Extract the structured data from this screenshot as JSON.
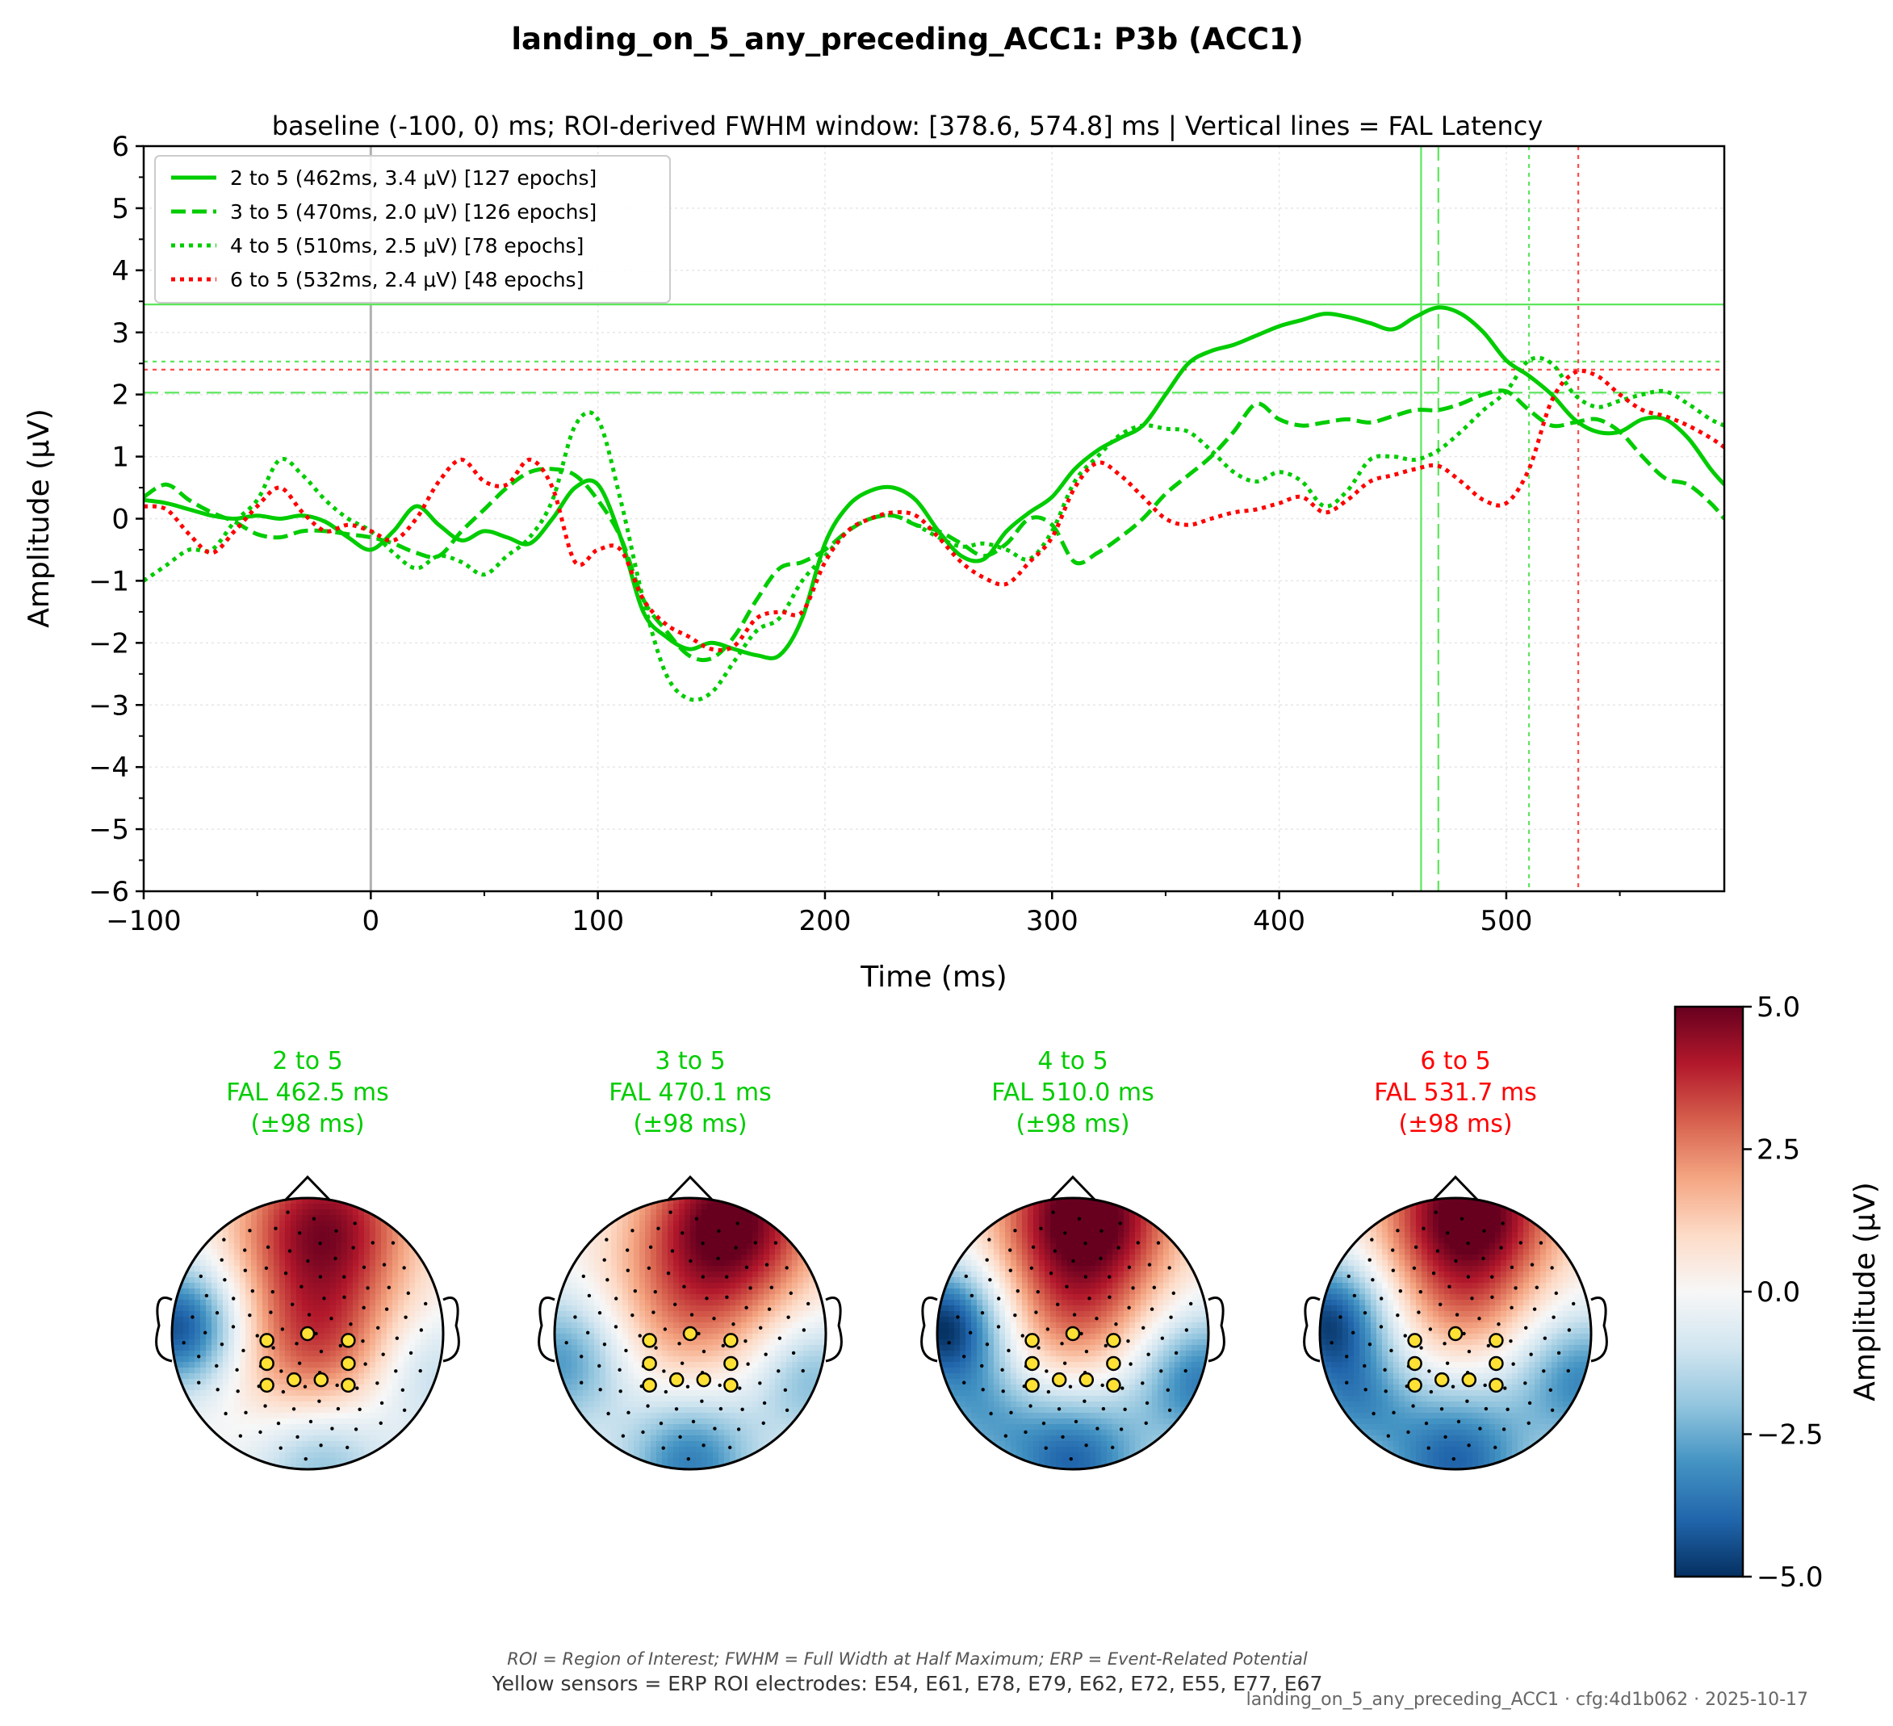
{
  "suptitle": "landing_on_5_any_preceding_ACC1: P3b (ACC1)",
  "colors": {
    "green": "#00cc00",
    "red": "#ff0000",
    "light_green": "#5ce65c"
  },
  "chart_data": [
    {
      "type": "line",
      "title": "baseline (-100, 0) ms; ROI-derived FWHM window: [378.6, 574.8] ms | Vertical lines = FAL Latency",
      "xlabel": "Time (ms)",
      "ylabel": "Amplitude (μV)",
      "xlim": [
        -100,
        596
      ],
      "ylim": [
        -6,
        6
      ],
      "xticks": [
        -100,
        0,
        100,
        200,
        300,
        400,
        500
      ],
      "xtick_labels": [
        "−100",
        "0",
        "100",
        "200",
        "300",
        "400",
        "500"
      ],
      "yticks": [
        6,
        5,
        4,
        3,
        2,
        1,
        0,
        -1,
        -2,
        -3,
        -4,
        -5,
        -6
      ],
      "ytick_labels": [
        "6",
        "5",
        "4",
        "3",
        "2",
        "1",
        "0",
        "−1",
        "−2",
        "−3",
        "−4",
        "−5",
        "−6"
      ],
      "grid": true,
      "legend_position": "upper-left",
      "series": [
        {
          "name": "2 to 5 (462ms, 3.4 μV) [127 epochs]",
          "color": "#00cc00",
          "dash": "solid",
          "fal_latency": 462.5,
          "fal_amplitude": 3.45,
          "x": [
            -100,
            -90,
            -80,
            -70,
            -60,
            -50,
            -40,
            -30,
            -20,
            -10,
            0,
            10,
            20,
            30,
            40,
            50,
            60,
            70,
            80,
            90,
            100,
            110,
            120,
            130,
            140,
            150,
            160,
            170,
            180,
            190,
            200,
            210,
            220,
            230,
            240,
            250,
            260,
            270,
            280,
            290,
            300,
            310,
            320,
            330,
            340,
            350,
            360,
            370,
            380,
            390,
            400,
            410,
            420,
            430,
            440,
            450,
            460,
            470,
            480,
            490,
            500,
            510,
            520,
            530,
            540,
            550,
            560,
            570,
            580,
            590,
            596
          ],
          "y": [
            0.3,
            0.25,
            0.15,
            0.05,
            0.0,
            0.05,
            0.0,
            0.05,
            -0.05,
            -0.3,
            -0.5,
            -0.2,
            0.2,
            -0.1,
            -0.35,
            -0.2,
            -0.3,
            -0.4,
            0.0,
            0.5,
            0.55,
            -0.3,
            -1.5,
            -1.9,
            -2.1,
            -2.0,
            -2.1,
            -2.2,
            -2.2,
            -1.6,
            -0.4,
            0.2,
            0.45,
            0.5,
            0.3,
            -0.2,
            -0.6,
            -0.65,
            -0.2,
            0.1,
            0.35,
            0.8,
            1.1,
            1.3,
            1.5,
            2.0,
            2.5,
            2.7,
            2.8,
            2.95,
            3.1,
            3.2,
            3.3,
            3.25,
            3.15,
            3.05,
            3.25,
            3.4,
            3.3,
            3.0,
            2.55,
            2.3,
            2.0,
            1.6,
            1.4,
            1.4,
            1.6,
            1.6,
            1.3,
            0.8,
            0.55
          ]
        },
        {
          "name": "3 to 5 (470ms, 2.0 μV) [126 epochs]",
          "color": "#00cc00",
          "dash": "dashed",
          "fal_latency": 470.1,
          "fal_amplitude": 2.03,
          "x": [
            -100,
            -90,
            -80,
            -70,
            -60,
            -50,
            -40,
            -30,
            -20,
            -10,
            0,
            10,
            20,
            30,
            40,
            50,
            60,
            70,
            80,
            90,
            100,
            110,
            120,
            130,
            140,
            150,
            160,
            170,
            180,
            190,
            200,
            210,
            220,
            230,
            240,
            250,
            260,
            270,
            280,
            290,
            300,
            310,
            320,
            330,
            340,
            350,
            360,
            370,
            380,
            390,
            400,
            410,
            420,
            430,
            440,
            450,
            460,
            470,
            480,
            490,
            500,
            510,
            520,
            530,
            540,
            550,
            560,
            570,
            580,
            590,
            596
          ],
          "y": [
            0.35,
            0.55,
            0.3,
            0.1,
            -0.05,
            -0.25,
            -0.3,
            -0.2,
            -0.2,
            -0.25,
            -0.3,
            -0.4,
            -0.55,
            -0.6,
            -0.2,
            0.15,
            0.5,
            0.75,
            0.8,
            0.7,
            0.3,
            -0.3,
            -1.3,
            -1.8,
            -2.2,
            -2.25,
            -1.9,
            -1.3,
            -0.8,
            -0.7,
            -0.5,
            -0.2,
            0.0,
            0.05,
            -0.1,
            -0.2,
            -0.4,
            -0.6,
            -0.4,
            0.0,
            -0.1,
            -0.7,
            -0.55,
            -0.3,
            0.0,
            0.4,
            0.7,
            1.0,
            1.4,
            1.85,
            1.6,
            1.5,
            1.55,
            1.6,
            1.55,
            1.65,
            1.75,
            1.75,
            1.85,
            2.0,
            2.05,
            1.75,
            1.5,
            1.55,
            1.6,
            1.4,
            1.0,
            0.65,
            0.55,
            0.25,
            0.0
          ]
        },
        {
          "name": "4 to 5 (510ms, 2.5 μV) [78 epochs]",
          "color": "#00cc00",
          "dash": "dotted",
          "fal_latency": 510.0,
          "fal_amplitude": 2.53,
          "x": [
            -100,
            -90,
            -80,
            -70,
            -60,
            -50,
            -40,
            -30,
            -20,
            -10,
            0,
            10,
            20,
            30,
            40,
            50,
            60,
            70,
            80,
            90,
            100,
            110,
            120,
            130,
            140,
            150,
            160,
            170,
            180,
            190,
            200,
            210,
            220,
            230,
            240,
            250,
            260,
            270,
            280,
            290,
            300,
            310,
            320,
            330,
            340,
            350,
            360,
            370,
            380,
            390,
            400,
            410,
            420,
            430,
            440,
            450,
            460,
            470,
            480,
            490,
            500,
            510,
            520,
            530,
            540,
            550,
            560,
            570,
            580,
            590,
            596
          ],
          "y": [
            -1.0,
            -0.75,
            -0.5,
            -0.5,
            -0.05,
            0.3,
            0.95,
            0.7,
            0.3,
            0.0,
            -0.2,
            -0.55,
            -0.8,
            -0.6,
            -0.7,
            -0.9,
            -0.6,
            -0.3,
            0.3,
            1.5,
            1.6,
            0.3,
            -1.3,
            -2.5,
            -2.9,
            -2.8,
            -2.3,
            -1.8,
            -1.6,
            -1.0,
            -0.6,
            -0.2,
            0.0,
            0.05,
            -0.1,
            -0.3,
            -0.45,
            -0.4,
            -0.5,
            -0.65,
            -0.2,
            0.6,
            1.0,
            1.35,
            1.5,
            1.45,
            1.4,
            1.1,
            0.75,
            0.6,
            0.75,
            0.6,
            0.2,
            0.45,
            0.95,
            1.0,
            0.95,
            1.1,
            1.4,
            1.75,
            2.05,
            2.55,
            2.5,
            2.0,
            1.8,
            1.9,
            2.0,
            2.05,
            1.85,
            1.6,
            1.5
          ]
        },
        {
          "name": "6 to 5 (532ms, 2.4 μV) [48 epochs]",
          "color": "#ff0000",
          "dash": "dotted",
          "fal_latency": 531.7,
          "fal_amplitude": 2.4,
          "x": [
            -100,
            -90,
            -80,
            -70,
            -60,
            -50,
            -40,
            -30,
            -20,
            -10,
            0,
            10,
            20,
            30,
            40,
            50,
            60,
            70,
            80,
            90,
            100,
            110,
            120,
            130,
            140,
            150,
            160,
            170,
            180,
            190,
            200,
            210,
            220,
            230,
            240,
            250,
            260,
            270,
            280,
            290,
            300,
            310,
            320,
            330,
            340,
            350,
            360,
            370,
            380,
            390,
            400,
            410,
            420,
            430,
            440,
            450,
            460,
            470,
            480,
            490,
            500,
            510,
            520,
            530,
            540,
            550,
            560,
            570,
            580,
            590,
            596
          ],
          "y": [
            0.2,
            0.15,
            -0.25,
            -0.55,
            -0.2,
            0.2,
            0.5,
            0.1,
            -0.2,
            -0.1,
            -0.2,
            -0.35,
            0.0,
            0.6,
            0.95,
            0.6,
            0.55,
            0.95,
            0.5,
            -0.7,
            -0.5,
            -0.5,
            -1.3,
            -1.7,
            -1.9,
            -2.1,
            -2.05,
            -1.6,
            -1.5,
            -1.5,
            -0.7,
            -0.2,
            0.0,
            0.1,
            0.05,
            -0.3,
            -0.7,
            -0.95,
            -1.05,
            -0.7,
            -0.3,
            0.5,
            0.9,
            0.7,
            0.35,
            0.0,
            -0.1,
            0.0,
            0.1,
            0.15,
            0.25,
            0.35,
            0.1,
            0.3,
            0.6,
            0.7,
            0.8,
            0.85,
            0.6,
            0.3,
            0.25,
            0.8,
            1.9,
            2.35,
            2.3,
            2.0,
            1.75,
            1.65,
            1.5,
            1.3,
            1.15
          ]
        }
      ],
      "reference_lines": [
        {
          "orientation": "vertical",
          "value": 0,
          "color": "#b0b0b0",
          "dash": "solid"
        },
        {
          "orientation": "vertical",
          "value": 462.5,
          "color": "#5ce65c",
          "dash": "solid"
        },
        {
          "orientation": "vertical",
          "value": 470.1,
          "color": "#5ce65c",
          "dash": "dashed"
        },
        {
          "orientation": "vertical",
          "value": 510.0,
          "color": "#5ce65c",
          "dash": "dotted"
        },
        {
          "orientation": "vertical",
          "value": 531.7,
          "color": "#ff4d4d",
          "dash": "dotted"
        },
        {
          "orientation": "horizontal",
          "value": 3.45,
          "color": "#5ce65c",
          "dash": "solid"
        },
        {
          "orientation": "horizontal",
          "value": 2.53,
          "color": "#5ce65c",
          "dash": "dotted"
        },
        {
          "orientation": "horizontal",
          "value": 2.4,
          "color": "#ff4d4d",
          "dash": "dotted"
        },
        {
          "orientation": "horizontal",
          "value": 2.03,
          "color": "#5ce65c",
          "dash": "dashed"
        }
      ]
    },
    {
      "type": "heatmap",
      "subtype": "topomap",
      "colormap": "RdBu_r",
      "colorbar": {
        "label": "Amplitude (μV)",
        "vmin": -5.0,
        "vmax": 5.0,
        "ticks": [
          5.0,
          2.5,
          0.0,
          -2.5,
          -5.0
        ],
        "tick_labels": [
          "5.0",
          "2.5",
          "0.0",
          "−2.5",
          "−5.0"
        ]
      },
      "maps": [
        {
          "title_lines": [
            "2 to 5",
            "FAL 462.5 ms",
            "(±98 ms)"
          ],
          "color": "#00cc00",
          "fields": [
            {
              "v": 4.5,
              "cx": 0.12,
              "cy": -0.8,
              "s": 0.45
            },
            {
              "v": 3.0,
              "cx": 0.05,
              "cy": 0.1,
              "s": 0.42
            },
            {
              "v": -4.5,
              "cx": -0.95,
              "cy": -0.05,
              "s": 0.32
            },
            {
              "v": -2.2,
              "cx": 0.1,
              "cy": 0.95,
              "s": 0.35
            },
            {
              "v": -1.4,
              "cx": 0.9,
              "cy": 0.3,
              "s": 0.32
            }
          ]
        },
        {
          "title_lines": [
            "3 to 5",
            "FAL 470.1 ms",
            "(±98 ms)"
          ],
          "color": "#00cc00",
          "fields": [
            {
              "v": 5.0,
              "cx": 0.3,
              "cy": -0.85,
              "s": 0.45
            },
            {
              "v": 2.0,
              "cx": -0.05,
              "cy": -0.15,
              "s": 0.45
            },
            {
              "v": -3.0,
              "cx": -0.95,
              "cy": 0.2,
              "s": 0.35
            },
            {
              "v": -3.5,
              "cx": 0.0,
              "cy": 0.95,
              "s": 0.35
            },
            {
              "v": -2.2,
              "cx": 0.9,
              "cy": 0.35,
              "s": 0.32
            }
          ]
        },
        {
          "title_lines": [
            "4 to 5",
            "FAL 510.0 ms",
            "(±98 ms)"
          ],
          "color": "#00cc00",
          "fields": [
            {
              "v": 5.5,
              "cx": 0.1,
              "cy": -0.9,
              "s": 0.45
            },
            {
              "v": 2.2,
              "cx": 0.0,
              "cy": -0.1,
              "s": 0.4
            },
            {
              "v": -5.0,
              "cx": -0.95,
              "cy": -0.05,
              "s": 0.32
            },
            {
              "v": -4.0,
              "cx": 0.0,
              "cy": 0.95,
              "s": 0.38
            },
            {
              "v": -3.5,
              "cx": 0.95,
              "cy": 0.35,
              "s": 0.35
            },
            {
              "v": -2.0,
              "cx": -0.7,
              "cy": 0.6,
              "s": 0.3
            }
          ]
        },
        {
          "title_lines": [
            "6 to 5",
            "FAL 531.7 ms",
            "(±98 ms)"
          ],
          "color": "#ff0000",
          "fields": [
            {
              "v": 5.5,
              "cx": 0.1,
              "cy": -0.9,
              "s": 0.45
            },
            {
              "v": 1.5,
              "cx": 0.05,
              "cy": -0.15,
              "s": 0.35
            },
            {
              "v": -4.5,
              "cx": -0.95,
              "cy": -0.1,
              "s": 0.32
            },
            {
              "v": -4.0,
              "cx": 0.0,
              "cy": 0.95,
              "s": 0.4
            },
            {
              "v": -3.2,
              "cx": 0.95,
              "cy": 0.35,
              "s": 0.35
            },
            {
              "v": -2.5,
              "cx": -0.75,
              "cy": 0.5,
              "s": 0.3
            }
          ]
        }
      ]
    }
  ],
  "footer": {
    "abbrev": "ROI = Region of Interest; FWHM = Full Width at Half Maximum; ERP = Event-Related Potential",
    "sensors": "Yellow sensors = ERP ROI electrodes: E54, E61, E78, E79, E62, E72, E55, E77, E67",
    "stamp": "landing_on_5_any_preceding_ACC1 · cfg:4d1b062 · 2025-10-17"
  }
}
